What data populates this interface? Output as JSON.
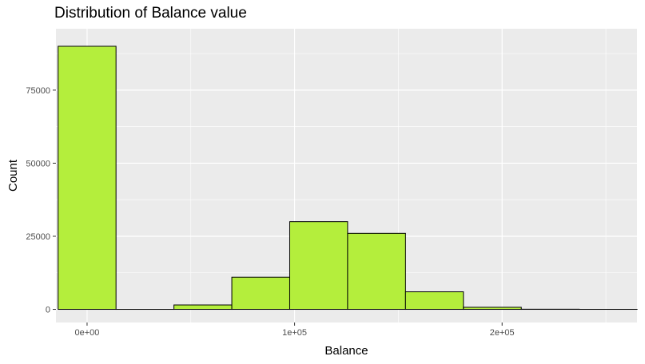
{
  "chart_data": {
    "type": "bar",
    "title": "Distribution of Balance value",
    "xlabel": "Balance",
    "ylabel": "Count",
    "xlim": [
      -15000,
      265000
    ],
    "ylim": [
      -4500,
      96000
    ],
    "x_ticks": [
      0,
      100000,
      200000
    ],
    "x_tick_labels": [
      "0e+00",
      "1e+05",
      "2e+05"
    ],
    "y_ticks": [
      0,
      25000,
      50000,
      75000
    ],
    "y_tick_labels": [
      "0",
      "25000",
      "50000",
      "75000"
    ],
    "bins": [
      {
        "x0": -13950,
        "x1": 13950,
        "count": 90000
      },
      {
        "x0": 13950,
        "x1": 41850,
        "count": 0
      },
      {
        "x0": 41850,
        "x1": 69750,
        "count": 1500
      },
      {
        "x0": 69750,
        "x1": 97650,
        "count": 11000
      },
      {
        "x0": 97650,
        "x1": 125550,
        "count": 30000
      },
      {
        "x0": 125550,
        "x1": 153450,
        "count": 26000
      },
      {
        "x0": 153450,
        "x1": 181350,
        "count": 6000
      },
      {
        "x0": 181350,
        "x1": 209250,
        "count": 700
      },
      {
        "x0": 209250,
        "x1": 237150,
        "count": 50
      },
      {
        "x0": 237150,
        "x1": 265050,
        "count": 10
      }
    ],
    "grid": true,
    "fill_color": "#b4ee3c",
    "edge_color": "#000000",
    "panel_color": "#ebebeb"
  }
}
